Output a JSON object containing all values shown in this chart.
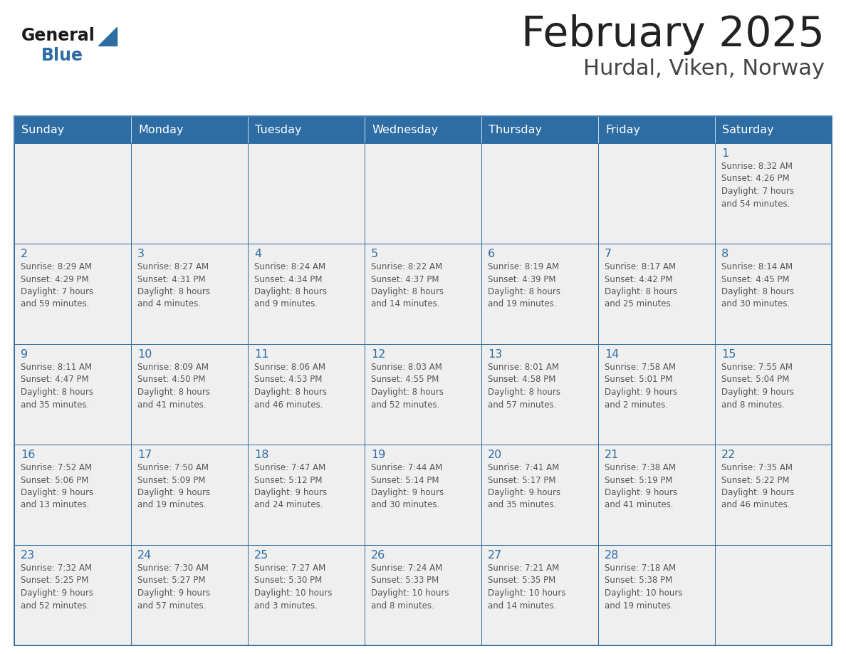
{
  "title": "February 2025",
  "subtitle": "Hurdal, Viken, Norway",
  "header_bg": "#2E6DA4",
  "header_text_color": "#FFFFFF",
  "cell_bg": "#EFEFEF",
  "border_color": "#2E6DA4",
  "day_number_color": "#2E6DA4",
  "info_text_color": "#555555",
  "title_color": "#222222",
  "subtitle_color": "#444444",
  "days_of_week": [
    "Sunday",
    "Monday",
    "Tuesday",
    "Wednesday",
    "Thursday",
    "Friday",
    "Saturday"
  ],
  "weeks": [
    [
      {
        "day": 0,
        "info": ""
      },
      {
        "day": 0,
        "info": ""
      },
      {
        "day": 0,
        "info": ""
      },
      {
        "day": 0,
        "info": ""
      },
      {
        "day": 0,
        "info": ""
      },
      {
        "day": 0,
        "info": ""
      },
      {
        "day": 1,
        "info": "Sunrise: 8:32 AM\nSunset: 4:26 PM\nDaylight: 7 hours\nand 54 minutes."
      }
    ],
    [
      {
        "day": 2,
        "info": "Sunrise: 8:29 AM\nSunset: 4:29 PM\nDaylight: 7 hours\nand 59 minutes."
      },
      {
        "day": 3,
        "info": "Sunrise: 8:27 AM\nSunset: 4:31 PM\nDaylight: 8 hours\nand 4 minutes."
      },
      {
        "day": 4,
        "info": "Sunrise: 8:24 AM\nSunset: 4:34 PM\nDaylight: 8 hours\nand 9 minutes."
      },
      {
        "day": 5,
        "info": "Sunrise: 8:22 AM\nSunset: 4:37 PM\nDaylight: 8 hours\nand 14 minutes."
      },
      {
        "day": 6,
        "info": "Sunrise: 8:19 AM\nSunset: 4:39 PM\nDaylight: 8 hours\nand 19 minutes."
      },
      {
        "day": 7,
        "info": "Sunrise: 8:17 AM\nSunset: 4:42 PM\nDaylight: 8 hours\nand 25 minutes."
      },
      {
        "day": 8,
        "info": "Sunrise: 8:14 AM\nSunset: 4:45 PM\nDaylight: 8 hours\nand 30 minutes."
      }
    ],
    [
      {
        "day": 9,
        "info": "Sunrise: 8:11 AM\nSunset: 4:47 PM\nDaylight: 8 hours\nand 35 minutes."
      },
      {
        "day": 10,
        "info": "Sunrise: 8:09 AM\nSunset: 4:50 PM\nDaylight: 8 hours\nand 41 minutes."
      },
      {
        "day": 11,
        "info": "Sunrise: 8:06 AM\nSunset: 4:53 PM\nDaylight: 8 hours\nand 46 minutes."
      },
      {
        "day": 12,
        "info": "Sunrise: 8:03 AM\nSunset: 4:55 PM\nDaylight: 8 hours\nand 52 minutes."
      },
      {
        "day": 13,
        "info": "Sunrise: 8:01 AM\nSunset: 4:58 PM\nDaylight: 8 hours\nand 57 minutes."
      },
      {
        "day": 14,
        "info": "Sunrise: 7:58 AM\nSunset: 5:01 PM\nDaylight: 9 hours\nand 2 minutes."
      },
      {
        "day": 15,
        "info": "Sunrise: 7:55 AM\nSunset: 5:04 PM\nDaylight: 9 hours\nand 8 minutes."
      }
    ],
    [
      {
        "day": 16,
        "info": "Sunrise: 7:52 AM\nSunset: 5:06 PM\nDaylight: 9 hours\nand 13 minutes."
      },
      {
        "day": 17,
        "info": "Sunrise: 7:50 AM\nSunset: 5:09 PM\nDaylight: 9 hours\nand 19 minutes."
      },
      {
        "day": 18,
        "info": "Sunrise: 7:47 AM\nSunset: 5:12 PM\nDaylight: 9 hours\nand 24 minutes."
      },
      {
        "day": 19,
        "info": "Sunrise: 7:44 AM\nSunset: 5:14 PM\nDaylight: 9 hours\nand 30 minutes."
      },
      {
        "day": 20,
        "info": "Sunrise: 7:41 AM\nSunset: 5:17 PM\nDaylight: 9 hours\nand 35 minutes."
      },
      {
        "day": 21,
        "info": "Sunrise: 7:38 AM\nSunset: 5:19 PM\nDaylight: 9 hours\nand 41 minutes."
      },
      {
        "day": 22,
        "info": "Sunrise: 7:35 AM\nSunset: 5:22 PM\nDaylight: 9 hours\nand 46 minutes."
      }
    ],
    [
      {
        "day": 23,
        "info": "Sunrise: 7:32 AM\nSunset: 5:25 PM\nDaylight: 9 hours\nand 52 minutes."
      },
      {
        "day": 24,
        "info": "Sunrise: 7:30 AM\nSunset: 5:27 PM\nDaylight: 9 hours\nand 57 minutes."
      },
      {
        "day": 25,
        "info": "Sunrise: 7:27 AM\nSunset: 5:30 PM\nDaylight: 10 hours\nand 3 minutes."
      },
      {
        "day": 26,
        "info": "Sunrise: 7:24 AM\nSunset: 5:33 PM\nDaylight: 10 hours\nand 8 minutes."
      },
      {
        "day": 27,
        "info": "Sunrise: 7:21 AM\nSunset: 5:35 PM\nDaylight: 10 hours\nand 14 minutes."
      },
      {
        "day": 28,
        "info": "Sunrise: 7:18 AM\nSunset: 5:38 PM\nDaylight: 10 hours\nand 19 minutes."
      },
      {
        "day": 0,
        "info": ""
      }
    ]
  ]
}
